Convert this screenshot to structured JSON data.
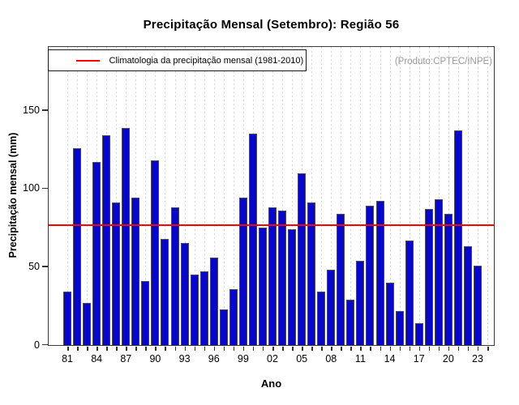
{
  "title": "Precipitação Mensal (Setembro): Região 56",
  "legend": {
    "label": "Climatologia da precipitação mensal (1981-2010)",
    "line_color": "#ff0000"
  },
  "watermark": "(Produto:CPTEC/INPE)",
  "chart_data": {
    "type": "bar",
    "title": "Precipitação Mensal (Setembro): Região 56",
    "xlabel": "Ano",
    "ylabel": "Precipitação mensal (mm)",
    "ylim": [
      0,
      190
    ],
    "yticks": [
      0,
      50,
      100,
      150
    ],
    "grid": "vertical-dotted",
    "legend_position": "top-left",
    "x_label_every": 3,
    "categories": [
      "81",
      "82",
      "83",
      "84",
      "85",
      "86",
      "87",
      "88",
      "89",
      "90",
      "91",
      "92",
      "93",
      "94",
      "95",
      "96",
      "97",
      "98",
      "99",
      "00",
      "01",
      "02",
      "03",
      "04",
      "05",
      "06",
      "07",
      "08",
      "09",
      "10",
      "11",
      "12",
      "13",
      "14",
      "15",
      "16",
      "17",
      "18",
      "19",
      "20",
      "21",
      "22",
      "23"
    ],
    "values": [
      34,
      126,
      27,
      117,
      134,
      91,
      139,
      94,
      41,
      118,
      68,
      88,
      65,
      45,
      47,
      56,
      23,
      36,
      94,
      135,
      75,
      88,
      86,
      74,
      110,
      91,
      34,
      48,
      84,
      29,
      54,
      89,
      92,
      40,
      22,
      67,
      14,
      87,
      93,
      84,
      137,
      63,
      51
    ],
    "climatology_line": 76.5,
    "bar_color": "#0606ce",
    "bar_border_color": "#4d4d4d",
    "line_color": "#ff0000",
    "grid_color": "#d4d4d4"
  }
}
